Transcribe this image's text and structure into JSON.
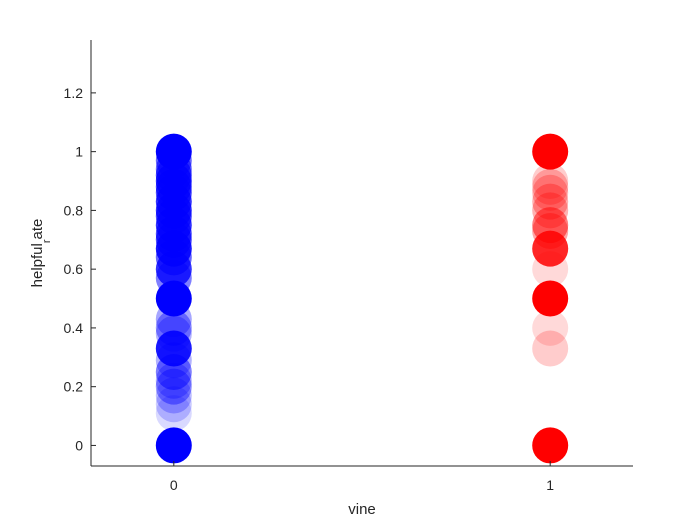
{
  "chart_data": {
    "type": "scatter",
    "title": "",
    "xlabel": "vine",
    "ylabel": {
      "main": "helpful",
      "sub": "r",
      "rest": "ate"
    },
    "xlim": [
      -0.22,
      1.22
    ],
    "ylim": [
      -0.07,
      1.38
    ],
    "x_ticks": [
      0,
      1
    ],
    "y_ticks": [
      0,
      0.2,
      0.4,
      0.6,
      0.8,
      1,
      1.2
    ],
    "y_tick_labels": [
      "0",
      "0.2",
      "0.4",
      "0.6",
      "0.8",
      "1",
      "1.2"
    ],
    "grid": false,
    "legend": "none",
    "series": [
      {
        "color": "#0000ff",
        "x": 0,
        "points": [
          {
            "y": 1.0,
            "alpha": 1.0
          },
          {
            "y": 0.97,
            "alpha": 0.6
          },
          {
            "y": 0.94,
            "alpha": 0.6
          },
          {
            "y": 0.92,
            "alpha": 0.7
          },
          {
            "y": 0.9,
            "alpha": 0.8
          },
          {
            "y": 0.88,
            "alpha": 0.7
          },
          {
            "y": 0.86,
            "alpha": 0.7
          },
          {
            "y": 0.83,
            "alpha": 0.8
          },
          {
            "y": 0.8,
            "alpha": 0.8
          },
          {
            "y": 0.78,
            "alpha": 0.7
          },
          {
            "y": 0.75,
            "alpha": 0.8
          },
          {
            "y": 0.72,
            "alpha": 0.7
          },
          {
            "y": 0.7,
            "alpha": 0.7
          },
          {
            "y": 0.67,
            "alpha": 0.9
          },
          {
            "y": 0.64,
            "alpha": 0.6
          },
          {
            "y": 0.6,
            "alpha": 0.8
          },
          {
            "y": 0.57,
            "alpha": 0.5
          },
          {
            "y": 0.5,
            "alpha": 1.0
          },
          {
            "y": 0.43,
            "alpha": 0.35
          },
          {
            "y": 0.4,
            "alpha": 0.4
          },
          {
            "y": 0.38,
            "alpha": 0.3
          },
          {
            "y": 0.33,
            "alpha": 0.9
          },
          {
            "y": 0.29,
            "alpha": 0.3
          },
          {
            "y": 0.25,
            "alpha": 0.5
          },
          {
            "y": 0.22,
            "alpha": 0.3
          },
          {
            "y": 0.2,
            "alpha": 0.4
          },
          {
            "y": 0.17,
            "alpha": 0.25
          },
          {
            "y": 0.14,
            "alpha": 0.2
          },
          {
            "y": 0.11,
            "alpha": 0.15
          },
          {
            "y": 0.0,
            "alpha": 1.0
          }
        ]
      },
      {
        "color": "#ff0000",
        "x": 1,
        "points": [
          {
            "y": 1.0,
            "alpha": 1.0
          },
          {
            "y": 0.9,
            "alpha": 0.2
          },
          {
            "y": 0.88,
            "alpha": 0.25
          },
          {
            "y": 0.86,
            "alpha": 0.25
          },
          {
            "y": 0.83,
            "alpha": 0.3
          },
          {
            "y": 0.8,
            "alpha": 0.3
          },
          {
            "y": 0.75,
            "alpha": 0.5
          },
          {
            "y": 0.73,
            "alpha": 0.35
          },
          {
            "y": 0.67,
            "alpha": 0.85
          },
          {
            "y": 0.6,
            "alpha": 0.15
          },
          {
            "y": 0.5,
            "alpha": 1.0
          },
          {
            "y": 0.4,
            "alpha": 0.15
          },
          {
            "y": 0.33,
            "alpha": 0.2
          },
          {
            "y": 0.0,
            "alpha": 1.0
          }
        ]
      }
    ]
  }
}
